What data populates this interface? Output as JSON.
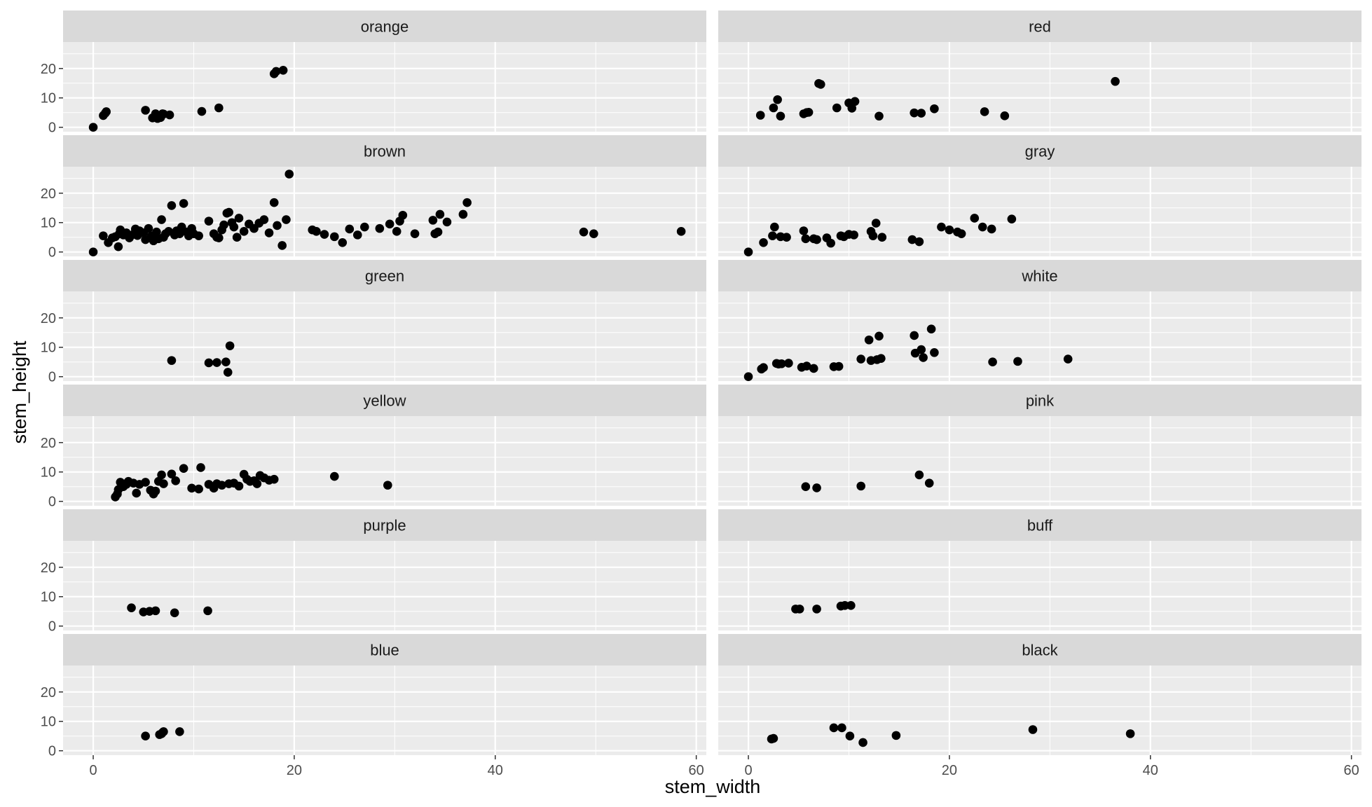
{
  "chart_data": {
    "type": "scatter",
    "xlabel": "stem_width",
    "ylabel": "stem_height",
    "xlim": [
      -3,
      61
    ],
    "ylim": [
      -1.5,
      29
    ],
    "x_ticks": [
      0,
      20,
      40,
      60
    ],
    "y_ticks": [
      0,
      10,
      20
    ],
    "grid": true,
    "facets": [
      {
        "name": "orange",
        "x": [
          0,
          1,
          1.2,
          1.3,
          5.2,
          5.9,
          6.2,
          6.4,
          6.7,
          6.9,
          7.0,
          7.6,
          10.8,
          12.5,
          18.0,
          18.2,
          18.9
        ],
        "y": [
          0,
          4,
          4.8,
          5.3,
          5.8,
          3.2,
          4.6,
          3.0,
          3.3,
          4.6,
          4.5,
          4.2,
          5.4,
          6.6,
          18.2,
          19.0,
          19.4
        ]
      },
      {
        "name": "red",
        "x": [
          1.2,
          2.5,
          2.9,
          3.2,
          5.5,
          5.8,
          6.0,
          7.0,
          7.2,
          8.8,
          10.0,
          10.3,
          10.6,
          13.0,
          16.5,
          17.2,
          18.5,
          23.5,
          25.5,
          36.5
        ],
        "y": [
          4.1,
          6.6,
          9.4,
          3.8,
          4.6,
          5.0,
          5.1,
          14.9,
          14.6,
          6.6,
          8.3,
          6.5,
          8.8,
          3.8,
          4.9,
          4.8,
          6.3,
          5.3,
          3.9,
          15.6
        ]
      },
      {
        "name": "brown",
        "x": [
          0,
          1,
          1.5,
          1.9,
          2.2,
          2.5,
          2.6,
          2.7,
          3.0,
          3.3,
          3.6,
          4.0,
          4.2,
          4.4,
          4.6,
          5.0,
          5.2,
          5.5,
          5.8,
          6.0,
          6.3,
          6.5,
          6.8,
          7.0,
          7.2,
          7.5,
          7.8,
          8.1,
          8.3,
          8.6,
          8.8,
          9.0,
          9.3,
          9.5,
          9.8,
          10.0,
          10.5,
          11.5,
          12.0,
          12.3,
          12.5,
          12.8,
          13.0,
          13.3,
          13.5,
          13.8,
          14.0,
          14.3,
          14.5,
          15.0,
          15.5,
          16.0,
          16.5,
          17.0,
          17.5,
          18.0,
          18.3,
          18.8,
          19.2,
          19.5,
          21.8,
          22.2,
          23.0,
          24.0,
          24.8,
          25.5,
          26.3,
          27.0,
          28.5,
          29.5,
          30.2,
          30.5,
          30.8,
          32.0,
          33.8,
          34.0,
          34.3,
          34.5,
          35.2,
          36.8,
          37.2,
          48.8,
          49.8,
          58.5
        ],
        "y": [
          0,
          5.5,
          3.2,
          4.8,
          5.2,
          1.8,
          6.2,
          7.5,
          5.8,
          6.5,
          4.8,
          6.0,
          7.8,
          5.6,
          7.2,
          6.5,
          4.2,
          8.0,
          5.5,
          3.8,
          6.8,
          4.5,
          11.0,
          5.0,
          6.2,
          7.0,
          15.8,
          5.8,
          7.2,
          6.2,
          8.5,
          16.5,
          6.8,
          5.5,
          8.0,
          6.2,
          5.5,
          10.5,
          6.2,
          5.0,
          4.8,
          7.5,
          9.2,
          13.2,
          13.5,
          10.0,
          8.5,
          5.0,
          11.5,
          7.0,
          9.5,
          8.0,
          9.8,
          11.0,
          6.5,
          16.8,
          9.0,
          2.2,
          11.0,
          26.5,
          7.5,
          7.0,
          6.0,
          5.2,
          3.2,
          7.8,
          5.8,
          8.5,
          8.0,
          9.5,
          7.0,
          10.5,
          12.5,
          6.2,
          10.8,
          6.2,
          6.8,
          12.8,
          10.2,
          12.8,
          16.8,
          6.8,
          6.2,
          7.0
        ]
      },
      {
        "name": "gray",
        "x": [
          0,
          1.5,
          2.4,
          2.6,
          3.2,
          3.8,
          5.5,
          5.7,
          6.5,
          6.8,
          7.8,
          8.2,
          9.2,
          9.5,
          10.0,
          10.5,
          12.2,
          12.4,
          12.7,
          13.3,
          16.3,
          17.0,
          19.2,
          20.0,
          20.8,
          21.2,
          22.5,
          23.3,
          24.2,
          26.2
        ],
        "y": [
          0,
          3.2,
          5.5,
          8.5,
          5.2,
          5.0,
          7.2,
          4.5,
          4.5,
          4.2,
          4.8,
          3.0,
          5.5,
          5.2,
          6.0,
          5.8,
          7.0,
          5.5,
          9.8,
          5.0,
          4.2,
          3.5,
          8.5,
          7.5,
          6.8,
          6.2,
          11.5,
          8.5,
          7.8,
          11.2
        ]
      },
      {
        "name": "green",
        "x": [
          7.8,
          11.5,
          12.3,
          13.2,
          13.4,
          13.6
        ],
        "y": [
          5.5,
          4.7,
          4.8,
          5.0,
          1.5,
          10.5
        ]
      },
      {
        "name": "white",
        "x": [
          0,
          1.3,
          1.5,
          2.8,
          3.0,
          3.3,
          4.0,
          5.3,
          5.8,
          6.5,
          8.5,
          9.0,
          11.2,
          12.0,
          12.2,
          12.8,
          13.0,
          13.2,
          16.5,
          16.6,
          17.2,
          17.4,
          18.2,
          18.5,
          24.3,
          26.8,
          31.8
        ],
        "y": [
          0,
          2.6,
          3.1,
          4.5,
          4.3,
          4.4,
          4.6,
          3.2,
          3.6,
          2.8,
          3.4,
          3.5,
          6.0,
          12.5,
          5.5,
          5.8,
          13.8,
          6.2,
          14.0,
          8.0,
          9.2,
          6.5,
          16.2,
          8.2,
          5.0,
          5.2,
          6.0
        ]
      },
      {
        "name": "yellow",
        "x": [
          2.2,
          2.4,
          2.5,
          2.7,
          3.0,
          3.2,
          3.3,
          3.5,
          4.0,
          4.3,
          4.6,
          5.2,
          5.7,
          6.0,
          6.2,
          6.5,
          6.8,
          7.0,
          7.8,
          8.2,
          9.0,
          9.8,
          10.5,
          10.7,
          11.5,
          12.0,
          12.3,
          12.8,
          13.5,
          14.0,
          14.5,
          15.0,
          15.3,
          15.6,
          16.0,
          16.3,
          16.6,
          17.0,
          17.5,
          18.0,
          24.0,
          29.3
        ],
        "y": [
          1.5,
          2.5,
          4.0,
          6.5,
          5.0,
          6.0,
          5.8,
          6.8,
          6.2,
          2.8,
          5.8,
          6.5,
          3.8,
          2.5,
          3.5,
          6.8,
          9.0,
          6.0,
          9.3,
          7.0,
          11.2,
          4.5,
          4.2,
          11.5,
          5.8,
          4.5,
          6.0,
          5.5,
          6.0,
          6.2,
          5.2,
          9.2,
          7.5,
          6.8,
          7.0,
          6.0,
          8.8,
          8.0,
          7.2,
          7.5,
          8.5,
          5.5
        ]
      },
      {
        "name": "pink",
        "x": [
          5.7,
          6.8,
          11.2,
          17.0,
          18.0
        ],
        "y": [
          5.0,
          4.6,
          5.2,
          9.0,
          6.2
        ]
      },
      {
        "name": "purple",
        "x": [
          3.8,
          5.0,
          5.6,
          6.2,
          8.1,
          11.4
        ],
        "y": [
          6.2,
          4.8,
          5.0,
          5.2,
          4.5,
          5.2
        ]
      },
      {
        "name": "buff",
        "x": [
          4.7,
          5.1,
          6.8,
          9.2,
          9.6,
          10.2
        ],
        "y": [
          5.8,
          5.8,
          5.8,
          6.8,
          7.0,
          7.0
        ]
      },
      {
        "name": "blue",
        "x": [
          5.2,
          6.6,
          6.8,
          6.9,
          7.0,
          8.6
        ],
        "y": [
          5.0,
          5.5,
          5.8,
          6.2,
          6.5,
          6.5
        ]
      },
      {
        "name": "black",
        "x": [
          2.3,
          2.5,
          8.5,
          9.3,
          10.1,
          11.4,
          14.7,
          28.3,
          38.0
        ],
        "y": [
          4.0,
          4.2,
          7.8,
          7.8,
          5.0,
          2.8,
          5.2,
          7.2,
          5.8
        ]
      }
    ]
  }
}
